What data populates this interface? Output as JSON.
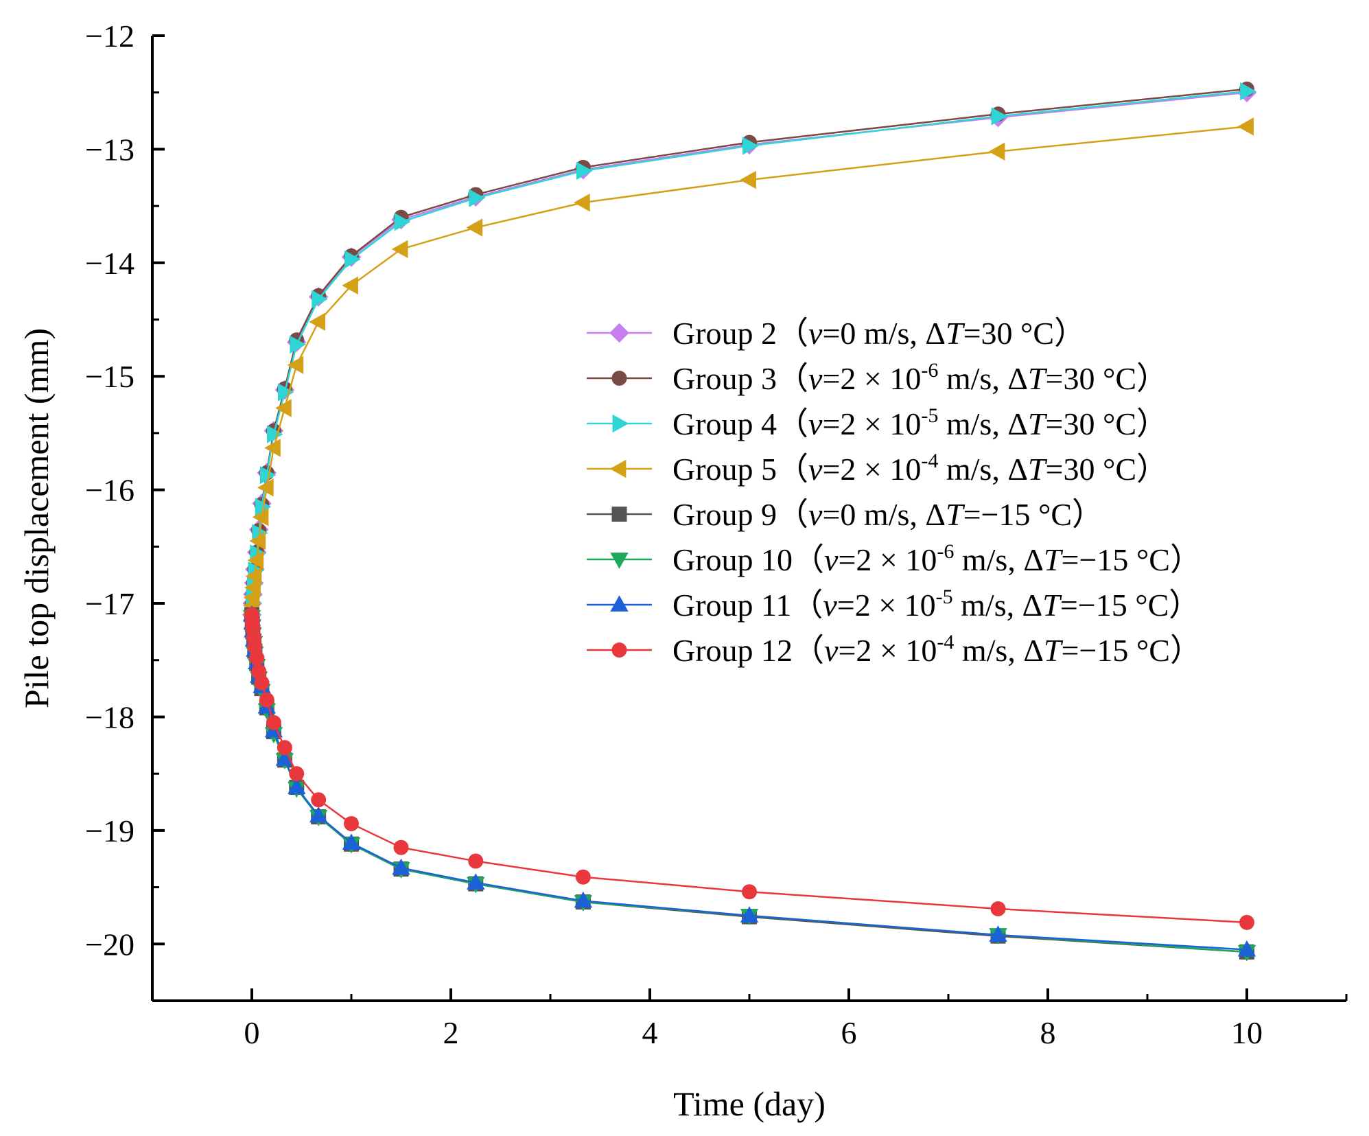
{
  "chart_data": {
    "type": "line",
    "title": "",
    "xlabel": "Time (day)",
    "ylabel": "Pile top displacement (mm)",
    "xlim": [
      -1,
      11
    ],
    "ylim": [
      -20.5,
      -12
    ],
    "xticks": [
      0,
      2,
      4,
      6,
      8,
      10
    ],
    "xtick_labels": [
      "0",
      "2",
      "4",
      "6",
      "8",
      "10"
    ],
    "yticks": [
      -12,
      -13,
      -14,
      -15,
      -16,
      -17,
      -18,
      -19,
      -20
    ],
    "ytick_labels": [
      "−12",
      "−13",
      "−14",
      "−15",
      "−16",
      "−17",
      "−18",
      "−19",
      "−20"
    ],
    "grid": false,
    "legend_position": "center-right",
    "x": [
      0,
      0.005,
      0.01,
      0.02,
      0.03,
      0.05,
      0.07,
      0.1,
      0.15,
      0.22,
      0.33,
      0.45,
      0.67,
      1.0,
      1.5,
      2.25,
      3.33,
      5.0,
      7.5,
      10.0
    ],
    "series": [
      {
        "name": "Group 2",
        "legend": {
          "prefix": "Group 2（",
          "var": "v",
          "eq": "=0 m/s, ",
          "dt": "ΔT",
          "temp": "=30 °C）"
        },
        "color": "#c77ef0",
        "marker": "diamond",
        "values": [
          -17.1,
          -17.0,
          -16.92,
          -16.82,
          -16.7,
          -16.55,
          -16.35,
          -16.12,
          -15.85,
          -15.48,
          -15.12,
          -14.7,
          -14.3,
          -13.95,
          -13.62,
          -13.42,
          -13.18,
          -12.96,
          -12.72,
          -12.5
        ]
      },
      {
        "name": "Group 3",
        "legend": {
          "prefix": "Group 3（",
          "var": "v",
          "eq": "=2 × 10",
          "sup": "-6",
          "unit": " m/s, ",
          "dt": "ΔT",
          "temp": "=30 °C）"
        },
        "color": "#7a4a45",
        "marker": "circle",
        "values": [
          -17.1,
          -17.0,
          -16.92,
          -16.82,
          -16.7,
          -16.55,
          -16.36,
          -16.13,
          -15.85,
          -15.48,
          -15.11,
          -14.68,
          -14.29,
          -13.94,
          -13.6,
          -13.4,
          -13.16,
          -12.94,
          -12.69,
          -12.47
        ]
      },
      {
        "name": "Group 4",
        "legend": {
          "prefix": "Group 4（",
          "var": "v",
          "eq": "=2 × 10",
          "sup": "-5",
          "unit": " m/s, ",
          "dt": "ΔT",
          "temp": "=30 °C）"
        },
        "color": "#2fd4d4",
        "marker": "triangle-right",
        "values": [
          -17.1,
          -17.0,
          -16.93,
          -16.83,
          -16.71,
          -16.56,
          -16.38,
          -16.15,
          -15.87,
          -15.51,
          -15.14,
          -14.72,
          -14.32,
          -13.97,
          -13.64,
          -13.43,
          -13.19,
          -12.97,
          -12.71,
          -12.49
        ]
      },
      {
        "name": "Group 5",
        "legend": {
          "prefix": "Group 5（",
          "var": "v",
          "eq": "=2 × 10",
          "sup": "-4",
          "unit": " m/s, ",
          "dt": "ΔT",
          "temp": "=30 °C）"
        },
        "color": "#d4a017",
        "marker": "triangle-left",
        "values": [
          -17.1,
          -17.02,
          -16.95,
          -16.86,
          -16.76,
          -16.62,
          -16.45,
          -16.24,
          -15.98,
          -15.63,
          -15.28,
          -14.9,
          -14.52,
          -14.2,
          -13.88,
          -13.69,
          -13.47,
          -13.27,
          -13.02,
          -12.8
        ]
      },
      {
        "name": "Group 9",
        "legend": {
          "prefix": "Group 9（",
          "var": "v",
          "eq": "=0 m/s, ",
          "dt": "ΔT",
          "temp": "=−15 °C）"
        },
        "color": "#555555",
        "marker": "square",
        "values": [
          -17.1,
          -17.18,
          -17.25,
          -17.33,
          -17.42,
          -17.53,
          -17.65,
          -17.75,
          -17.92,
          -18.13,
          -18.38,
          -18.62,
          -18.88,
          -19.12,
          -19.34,
          -19.47,
          -19.63,
          -19.76,
          -19.93,
          -20.07
        ]
      },
      {
        "name": "Group 10",
        "legend": {
          "prefix": "Group 10（",
          "var": "v",
          "eq": "=2 × 10",
          "sup": "-6",
          "unit": " m/s, ",
          "dt": "ΔT",
          "temp": "=−15 °C）"
        },
        "color": "#1fa85a",
        "marker": "triangle-down",
        "values": [
          -17.12,
          -17.2,
          -17.27,
          -17.35,
          -17.44,
          -17.55,
          -17.66,
          -17.77,
          -17.94,
          -18.15,
          -18.38,
          -18.63,
          -18.88,
          -19.12,
          -19.34,
          -19.47,
          -19.63,
          -19.75,
          -19.92,
          -20.07
        ]
      },
      {
        "name": "Group 11",
        "legend": {
          "prefix": "Group 11（",
          "var": "v",
          "eq": "=2 × 10",
          "sup": "-5",
          "unit": " m/s, ",
          "dt": "ΔT",
          "temp": "=−15 °C）"
        },
        "color": "#1a62d6",
        "marker": "triangle-up",
        "values": [
          -17.1,
          -17.17,
          -17.24,
          -17.32,
          -17.41,
          -17.52,
          -17.64,
          -17.73,
          -17.91,
          -18.12,
          -18.37,
          -18.62,
          -18.87,
          -19.11,
          -19.33,
          -19.46,
          -19.62,
          -19.75,
          -19.92,
          -20.05
        ]
      },
      {
        "name": "Group 12",
        "legend": {
          "prefix": "Group 12（",
          "var": "v",
          "eq": "=2 × 10",
          "sup": "-4",
          "unit": " m/s, ",
          "dt": "ΔT",
          "temp": "=−15 °C）"
        },
        "color": "#e8383d",
        "marker": "circle",
        "values": [
          -17.1,
          -17.16,
          -17.22,
          -17.3,
          -17.38,
          -17.48,
          -17.6,
          -17.7,
          -17.85,
          -18.05,
          -18.27,
          -18.5,
          -18.73,
          -18.94,
          -19.15,
          -19.27,
          -19.41,
          -19.54,
          -19.69,
          -19.81
        ]
      }
    ]
  }
}
